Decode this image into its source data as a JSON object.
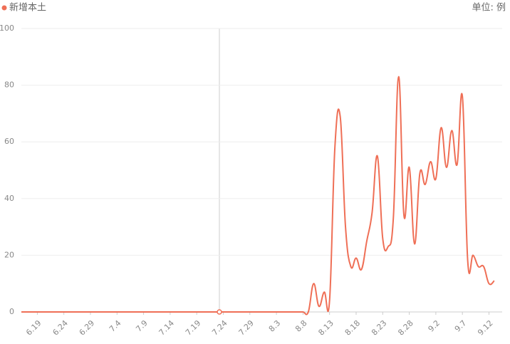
{
  "chart_data": {
    "type": "line",
    "legend": "新增本土",
    "unit_label": "单位: 例",
    "categories": [
      null,
      null,
      null,
      "6.19",
      null,
      null,
      null,
      null,
      "6.24",
      null,
      null,
      null,
      null,
      "6.29",
      null,
      null,
      null,
      null,
      "7.4",
      null,
      null,
      null,
      null,
      "7.9",
      null,
      null,
      null,
      null,
      "7.14",
      null,
      null,
      null,
      null,
      "7.19",
      null,
      null,
      null,
      null,
      "7.24",
      null,
      null,
      null,
      null,
      "7.29",
      null,
      null,
      null,
      null,
      "8.3",
      null,
      null,
      null,
      null,
      "8.8",
      null,
      null,
      null,
      null,
      "8.13",
      null,
      null,
      null,
      null,
      "8.18",
      null,
      null,
      null,
      null,
      "8.23",
      null,
      null,
      null,
      null,
      "8.28",
      null,
      null,
      null,
      null,
      "9.2",
      null,
      null,
      null,
      null,
      "9.7",
      null,
      null,
      null,
      null,
      "9.12",
      null
    ],
    "series": [
      {
        "name": "新增本土",
        "color": "#ef6f56",
        "values": [
          0,
          0,
          0,
          0,
          0,
          0,
          0,
          0,
          0,
          0,
          0,
          0,
          0,
          0,
          0,
          0,
          0,
          0,
          0,
          0,
          0,
          0,
          0,
          0,
          0,
          0,
          0,
          0,
          0,
          0,
          0,
          0,
          0,
          0,
          0,
          0,
          0,
          0,
          0,
          0,
          0,
          0,
          0,
          0,
          0,
          0,
          0,
          0,
          0,
          0,
          0,
          0,
          0,
          0,
          0,
          10,
          2,
          7,
          4,
          58,
          69,
          30,
          16,
          19,
          15,
          25,
          35,
          55,
          26,
          23,
          33,
          83,
          34,
          51,
          24,
          49,
          45,
          53,
          47,
          65,
          51,
          64,
          52,
          76,
          18,
          20,
          16,
          16,
          10,
          11
        ]
      }
    ],
    "ylim": [
      0,
      100
    ],
    "yticks": [
      0,
      20,
      40,
      60,
      80,
      100
    ],
    "grid": true
  }
}
